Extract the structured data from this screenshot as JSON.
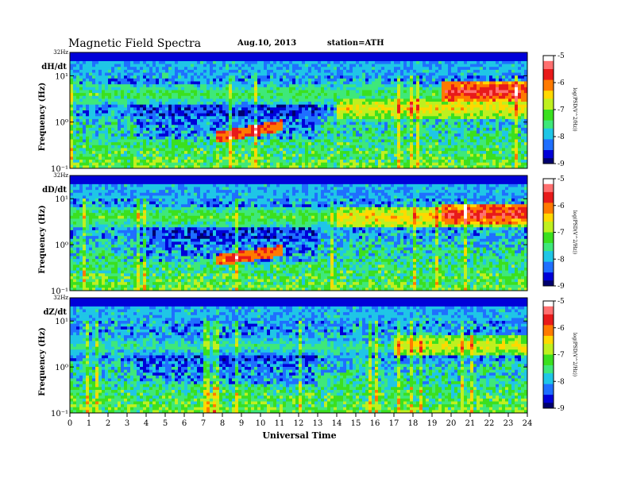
{
  "header": {
    "title": "Magnetic  Field  Spectra",
    "date": "Aug.10, 2013",
    "station": "station=ATH"
  },
  "colors": {
    "colormap": [
      "#00006e",
      "#0000d8",
      "#1f6fff",
      "#1fc6e6",
      "#3ee87a",
      "#3be01f",
      "#bff01f",
      "#ffd900",
      "#ff7a00",
      "#e81a1a",
      "#ff7070",
      "#ffffff"
    ]
  },
  "chart_data": {
    "type": "heatmap",
    "xlabel": "Universal Time",
    "x_ticks": [
      "0",
      "1",
      "2",
      "3",
      "4",
      "5",
      "6",
      "7",
      "8",
      "9",
      "10",
      "11",
      "12",
      "13",
      "14",
      "15",
      "16",
      "17",
      "18",
      "19",
      "20",
      "21",
      "22",
      "23",
      "24"
    ],
    "xlim": [
      0,
      24
    ],
    "y_scale": "log",
    "colorbar": {
      "ticks": [
        "-5",
        "-6",
        "-7",
        "-8",
        "-9"
      ],
      "label": "log(PSD(V^2/Hz))",
      "range": [
        -9,
        -5
      ]
    },
    "panels": [
      {
        "name": "dH/dt",
        "ylabel": "Frequency  (Hz)",
        "y_ticks": [
          "32Hz",
          "10¹",
          "10⁰",
          "10⁻¹"
        ],
        "features": {
          "bands": [
            {
              "f": 4.0,
              "from": 0,
              "to": 24,
              "level": -7.3
            },
            {
              "f": 2.0,
              "from": 14,
              "to": 24,
              "level": -6.5
            },
            {
              "f": 4.5,
              "from": 19.5,
              "to": 24,
              "level": -5.6
            }
          ],
          "pc1_event": {
            "from": 7.6,
            "to": 11.2,
            "f_start": 0.45,
            "f_end": 0.85,
            "level": -5.9
          }
        }
      },
      {
        "name": "dD/dt",
        "ylabel": "Frequency  (Hz)",
        "y_ticks": [
          "32Hz",
          "10¹",
          "10⁰",
          "10⁻¹"
        ],
        "features": {
          "bands": [
            {
              "f": 4.0,
              "from": 0,
              "to": 24,
              "level": -7.2
            },
            {
              "f": 4.0,
              "from": 14,
              "to": 24,
              "level": -6.4
            },
            {
              "f": 4.5,
              "from": 19.5,
              "to": 24,
              "level": -5.6
            }
          ],
          "pc1_event": {
            "from": 7.6,
            "to": 11.2,
            "f_start": 0.45,
            "f_end": 0.75,
            "level": -6.0
          }
        }
      },
      {
        "name": "dZ/dt",
        "ylabel": "Frequency  (Hz)",
        "y_ticks": [
          "32Hz",
          "10¹",
          "10⁰",
          "10⁻¹"
        ],
        "features": {
          "bands": [
            {
              "f": 2.8,
              "from": 0,
              "to": 24,
              "level": -7.6
            },
            {
              "f": 2.8,
              "from": 17,
              "to": 24,
              "level": -6.6
            }
          ],
          "pc1_event": null
        }
      }
    ]
  }
}
